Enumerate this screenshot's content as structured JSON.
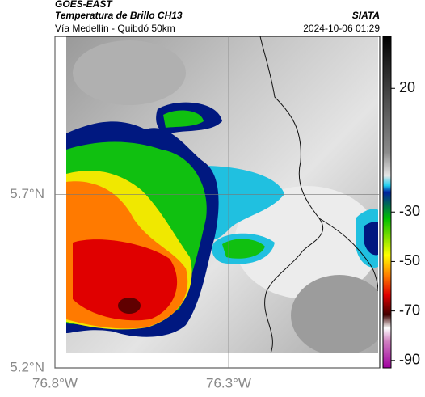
{
  "header": {
    "satellite": "GOES-EAST",
    "product": "Temperatura de Brillo CH13",
    "org": "SIATA",
    "region": "Vía Medellín - Quibdó 50km",
    "timestamp": "2024-10-06 01:29"
  },
  "map": {
    "xlim": [
      -76.8,
      -75.865
    ],
    "ylim": [
      5.2,
      6.155
    ],
    "xticks": [
      {
        "value": -76.8,
        "label": "76.8°W"
      },
      {
        "value": -76.3,
        "label": "76.3°W"
      }
    ],
    "yticks": [
      {
        "value": 5.2,
        "label": "5.2°N"
      },
      {
        "value": 5.7,
        "label": "5.7°N"
      }
    ]
  },
  "colorbar": {
    "lim": [
      -93,
      41
    ],
    "ticks": [
      20,
      -30,
      -50,
      -70,
      -90
    ]
  }
}
